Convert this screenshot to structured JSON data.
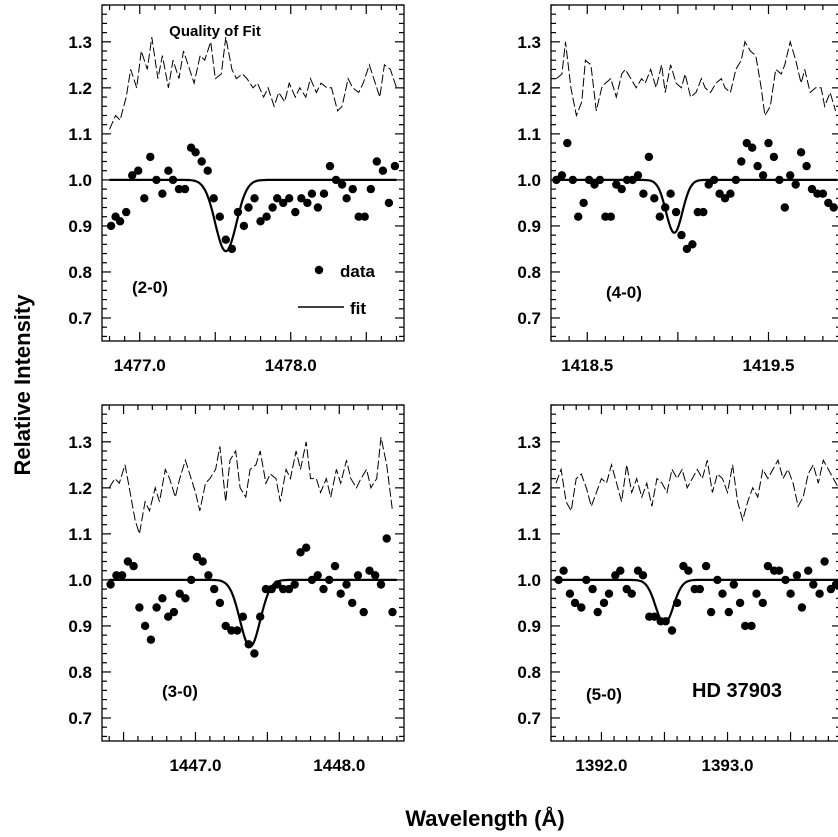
{
  "figure": {
    "xlabel": "Wavelength (Å)",
    "ylabel": "Relative Intensity"
  },
  "chart_data": [
    {
      "type": "scatter",
      "panel_label": "(2-0)",
      "title": "Quality of Fit",
      "annotation": "",
      "legend": [
        {
          "kind": "marker",
          "label": "data"
        },
        {
          "kind": "line",
          "label": "fit"
        }
      ],
      "xlim": [
        1476.75,
        1478.75
      ],
      "ylim": [
        0.65,
        1.38
      ],
      "x_ticks": [
        1477.0,
        1478.0
      ],
      "x_tick_labels": [
        "1477.0",
        "1478.0"
      ],
      "y_ticks": [
        0.7,
        0.8,
        0.9,
        1.0,
        1.1,
        1.2,
        1.3
      ],
      "y_tick_labels": [
        "0.7",
        "0.8",
        "0.9",
        "1.0",
        "1.1",
        "1.2",
        "1.3"
      ],
      "fit": {
        "x_start": 1476.8,
        "x_end": 1478.7,
        "continuum": 1.0,
        "center": 1477.57,
        "depth": 0.155,
        "sigma": 0.07
      },
      "data": {
        "x": [
          1476.81,
          1476.84,
          1476.87,
          1476.91,
          1476.95,
          1476.99,
          1477.03,
          1477.07,
          1477.11,
          1477.15,
          1477.19,
          1477.22,
          1477.26,
          1477.3,
          1477.34,
          1477.37,
          1477.41,
          1477.45,
          1477.49,
          1477.53,
          1477.57,
          1477.61,
          1477.65,
          1477.69,
          1477.72,
          1477.76,
          1477.8,
          1477.84,
          1477.88,
          1477.91,
          1477.95,
          1477.99,
          1478.03,
          1478.07,
          1478.11,
          1478.14,
          1478.18,
          1478.22,
          1478.26,
          1478.3,
          1478.34,
          1478.37,
          1478.41,
          1478.45,
          1478.49,
          1478.53,
          1478.57,
          1478.61,
          1478.65,
          1478.69
        ],
        "y": [
          0.9,
          0.92,
          0.91,
          0.93,
          1.01,
          1.02,
          0.96,
          1.05,
          1.0,
          0.97,
          1.02,
          1.0,
          0.98,
          0.98,
          1.07,
          1.06,
          1.04,
          1.02,
          0.96,
          0.92,
          0.87,
          0.85,
          0.93,
          0.9,
          0.94,
          0.96,
          0.91,
          0.92,
          0.94,
          0.96,
          0.95,
          0.96,
          0.93,
          0.96,
          0.95,
          0.97,
          0.94,
          0.97,
          1.03,
          1.0,
          0.99,
          0.96,
          0.98,
          0.92,
          0.92,
          0.98,
          1.04,
          1.02,
          0.95,
          1.03
        ]
      },
      "quality": {
        "x": [
          1476.8,
          1476.84,
          1476.87,
          1476.91,
          1476.94,
          1476.98,
          1477.01,
          1477.05,
          1477.08,
          1477.12,
          1477.15,
          1477.19,
          1477.22,
          1477.26,
          1477.29,
          1477.33,
          1477.36,
          1477.4,
          1477.43,
          1477.47,
          1477.5,
          1477.54,
          1477.57,
          1477.61,
          1477.64,
          1477.68,
          1477.71,
          1477.75,
          1477.78,
          1477.82,
          1477.85,
          1477.89,
          1477.92,
          1477.96,
          1477.99,
          1478.03,
          1478.06,
          1478.1,
          1478.13,
          1478.17,
          1478.2,
          1478.24,
          1478.27,
          1478.31,
          1478.34,
          1478.38,
          1478.41,
          1478.45,
          1478.48,
          1478.52,
          1478.55,
          1478.59,
          1478.62,
          1478.66,
          1478.7
        ],
        "y": [
          1.11,
          1.14,
          1.13,
          1.18,
          1.24,
          1.2,
          1.28,
          1.24,
          1.31,
          1.22,
          1.27,
          1.2,
          1.26,
          1.22,
          1.28,
          1.24,
          1.21,
          1.27,
          1.26,
          1.3,
          1.22,
          1.23,
          1.31,
          1.24,
          1.22,
          1.23,
          1.22,
          1.2,
          1.21,
          1.18,
          1.2,
          1.16,
          1.19,
          1.17,
          1.21,
          1.18,
          1.2,
          1.18,
          1.22,
          1.19,
          1.21,
          1.2,
          1.2,
          1.15,
          1.16,
          1.22,
          1.2,
          1.19,
          1.21,
          1.25,
          1.22,
          1.18,
          1.25,
          1.24,
          1.2
        ]
      }
    },
    {
      "type": "scatter",
      "panel_label": "(4-0)",
      "title": "",
      "annotation": "",
      "legend": [],
      "xlim": [
        1418.3,
        1419.9
      ],
      "ylim": [
        0.65,
        1.38
      ],
      "x_ticks": [
        1418.5,
        1419.5
      ],
      "x_tick_labels": [
        "1418.5",
        "1419.5"
      ],
      "y_ticks": [
        0.7,
        0.8,
        0.9,
        1.0,
        1.1,
        1.2,
        1.3
      ],
      "y_tick_labels": [
        "0.7",
        "0.8",
        "0.9",
        "1.0",
        "1.1",
        "1.2",
        "1.3"
      ],
      "fit": {
        "x_start": 1418.32,
        "x_end": 1419.88,
        "continuum": 1.0,
        "center": 1418.98,
        "depth": 0.115,
        "sigma": 0.045
      },
      "data": {
        "x": [
          1418.33,
          1418.36,
          1418.39,
          1418.42,
          1418.45,
          1418.48,
          1418.51,
          1418.54,
          1418.57,
          1418.6,
          1418.63,
          1418.66,
          1418.69,
          1418.72,
          1418.75,
          1418.78,
          1418.81,
          1418.84,
          1418.87,
          1418.9,
          1418.93,
          1418.96,
          1418.99,
          1419.02,
          1419.05,
          1419.08,
          1419.11,
          1419.14,
          1419.17,
          1419.2,
          1419.23,
          1419.26,
          1419.29,
          1419.32,
          1419.35,
          1419.38,
          1419.41,
          1419.44,
          1419.47,
          1419.5,
          1419.53,
          1419.56,
          1419.59,
          1419.62,
          1419.65,
          1419.68,
          1419.71,
          1419.74,
          1419.77,
          1419.8,
          1419.83,
          1419.86
        ],
        "y": [
          1.0,
          1.01,
          1.08,
          1.0,
          0.92,
          0.95,
          1.0,
          0.99,
          1.0,
          0.92,
          0.92,
          0.99,
          0.98,
          1.0,
          1.0,
          1.01,
          0.97,
          1.05,
          0.96,
          0.92,
          0.94,
          0.97,
          0.93,
          0.88,
          0.85,
          0.86,
          0.93,
          0.93,
          0.99,
          1.0,
          0.97,
          0.96,
          0.97,
          1.0,
          1.04,
          1.08,
          1.07,
          1.03,
          1.01,
          1.08,
          1.05,
          1.0,
          0.94,
          1.01,
          0.99,
          1.06,
          1.03,
          0.98,
          0.97,
          0.97,
          0.95,
          0.94
        ]
      },
      "quality": {
        "x": [
          1418.33,
          1418.36,
          1418.38,
          1418.41,
          1418.44,
          1418.47,
          1418.49,
          1418.52,
          1418.55,
          1418.58,
          1418.6,
          1418.63,
          1418.66,
          1418.69,
          1418.71,
          1418.74,
          1418.77,
          1418.8,
          1418.82,
          1418.85,
          1418.88,
          1418.91,
          1418.93,
          1418.96,
          1418.99,
          1419.02,
          1419.04,
          1419.07,
          1419.1,
          1419.13,
          1419.15,
          1419.18,
          1419.21,
          1419.24,
          1419.26,
          1419.29,
          1419.32,
          1419.35,
          1419.37,
          1419.4,
          1419.43,
          1419.46,
          1419.48,
          1419.51,
          1419.54,
          1419.57,
          1419.59,
          1419.62,
          1419.65,
          1419.68,
          1419.7,
          1419.73,
          1419.76,
          1419.79,
          1419.81,
          1419.84,
          1419.87
        ],
        "y": [
          1.22,
          1.23,
          1.3,
          1.2,
          1.14,
          1.17,
          1.26,
          1.25,
          1.15,
          1.2,
          1.21,
          1.22,
          1.18,
          1.23,
          1.24,
          1.22,
          1.2,
          1.22,
          1.21,
          1.24,
          1.2,
          1.25,
          1.19,
          1.25,
          1.21,
          1.2,
          1.23,
          1.18,
          1.19,
          1.22,
          1.2,
          1.19,
          1.21,
          1.22,
          1.2,
          1.19,
          1.24,
          1.26,
          1.3,
          1.28,
          1.27,
          1.2,
          1.14,
          1.16,
          1.24,
          1.23,
          1.25,
          1.3,
          1.26,
          1.21,
          1.24,
          1.19,
          1.2,
          1.2,
          1.16,
          1.19,
          1.15
        ]
      }
    },
    {
      "type": "scatter",
      "panel_label": "(3-0)",
      "title": "",
      "annotation": "",
      "legend": [],
      "xlim": [
        1446.35,
        1448.45
      ],
      "ylim": [
        0.65,
        1.38
      ],
      "x_ticks": [
        1447.0,
        1448.0
      ],
      "x_tick_labels": [
        "1447.0",
        "1448.0"
      ],
      "y_ticks": [
        0.7,
        0.8,
        0.9,
        1.0,
        1.1,
        1.2,
        1.3
      ],
      "y_tick_labels": [
        "0.7",
        "0.8",
        "0.9",
        "1.0",
        "1.1",
        "1.2",
        "1.3"
      ],
      "fit": {
        "x_start": 1446.4,
        "x_end": 1448.4,
        "continuum": 1.0,
        "center": 1447.38,
        "depth": 0.145,
        "sigma": 0.07
      },
      "data": {
        "x": [
          1446.41,
          1446.45,
          1446.49,
          1446.53,
          1446.57,
          1446.61,
          1446.65,
          1446.69,
          1446.73,
          1446.77,
          1446.81,
          1446.85,
          1446.89,
          1446.93,
          1446.97,
          1447.01,
          1447.05,
          1447.09,
          1447.13,
          1447.17,
          1447.21,
          1447.25,
          1447.29,
          1447.33,
          1447.37,
          1447.41,
          1447.45,
          1447.49,
          1447.53,
          1447.57,
          1447.61,
          1447.65,
          1447.69,
          1447.73,
          1447.77,
          1447.81,
          1447.85,
          1447.89,
          1447.93,
          1447.97,
          1448.01,
          1448.05,
          1448.09,
          1448.13,
          1448.17,
          1448.21,
          1448.25,
          1448.29,
          1448.33,
          1448.37
        ],
        "y": [
          0.99,
          1.01,
          1.01,
          1.04,
          1.03,
          0.94,
          0.9,
          0.87,
          0.94,
          0.96,
          0.92,
          0.93,
          0.97,
          0.96,
          1.0,
          1.05,
          1.04,
          1.01,
          0.98,
          0.95,
          0.9,
          0.89,
          0.89,
          0.92,
          0.86,
          0.84,
          0.92,
          0.98,
          0.98,
          0.99,
          0.98,
          0.98,
          0.99,
          1.06,
          1.07,
          1.0,
          1.01,
          0.98,
          1.0,
          1.03,
          0.97,
          0.99,
          0.95,
          1.01,
          0.93,
          1.02,
          1.01,
          0.99,
          1.09,
          0.93
        ]
      },
      "quality": {
        "x": [
          1446.4,
          1446.44,
          1446.47,
          1446.51,
          1446.54,
          1446.58,
          1446.61,
          1446.65,
          1446.68,
          1446.72,
          1446.75,
          1446.79,
          1446.82,
          1446.86,
          1446.89,
          1446.93,
          1446.96,
          1447.0,
          1447.03,
          1447.07,
          1447.1,
          1447.14,
          1447.17,
          1447.21,
          1447.24,
          1447.28,
          1447.31,
          1447.35,
          1447.38,
          1447.42,
          1447.45,
          1447.49,
          1447.52,
          1447.56,
          1447.59,
          1447.63,
          1447.66,
          1447.7,
          1447.73,
          1447.77,
          1447.8,
          1447.84,
          1447.87,
          1447.91,
          1447.94,
          1447.98,
          1448.01,
          1448.05,
          1448.08,
          1448.12,
          1448.15,
          1448.19,
          1448.22,
          1448.26,
          1448.29,
          1448.33,
          1448.37
        ],
        "y": [
          1.2,
          1.22,
          1.21,
          1.25,
          1.2,
          1.13,
          1.1,
          1.17,
          1.15,
          1.2,
          1.17,
          1.24,
          1.22,
          1.18,
          1.22,
          1.26,
          1.23,
          1.19,
          1.15,
          1.21,
          1.22,
          1.24,
          1.29,
          1.17,
          1.26,
          1.28,
          1.2,
          1.18,
          1.24,
          1.25,
          1.28,
          1.21,
          1.23,
          1.22,
          1.17,
          1.24,
          1.22,
          1.28,
          1.24,
          1.3,
          1.22,
          1.22,
          1.19,
          1.22,
          1.18,
          1.24,
          1.21,
          1.26,
          1.22,
          1.2,
          1.22,
          1.24,
          1.2,
          1.22,
          1.31,
          1.25,
          1.15
        ]
      }
    },
    {
      "type": "scatter",
      "panel_label": "(5-0)",
      "title": "",
      "annotation": "HD 37903",
      "legend": [],
      "xlim": [
        1391.6,
        1393.9
      ],
      "ylim": [
        0.65,
        1.38
      ],
      "x_ticks": [
        1392.0,
        1393.0
      ],
      "x_tick_labels": [
        "1392.0",
        "1393.0"
      ],
      "y_ticks": [
        0.7,
        0.8,
        0.9,
        1.0,
        1.1,
        1.2,
        1.3
      ],
      "y_tick_labels": [
        "0.7",
        "0.8",
        "0.9",
        "1.0",
        "1.1",
        "1.2",
        "1.3"
      ],
      "fit": {
        "x_start": 1391.62,
        "x_end": 1393.88,
        "continuum": 1.0,
        "center": 1392.5,
        "depth": 0.095,
        "sigma": 0.07
      },
      "data": {
        "x": [
          1391.66,
          1391.7,
          1391.75,
          1391.79,
          1391.84,
          1391.88,
          1391.93,
          1391.97,
          1392.02,
          1392.06,
          1392.11,
          1392.15,
          1392.2,
          1392.24,
          1392.29,
          1392.33,
          1392.38,
          1392.42,
          1392.47,
          1392.51,
          1392.56,
          1392.6,
          1392.65,
          1392.69,
          1392.74,
          1392.78,
          1392.83,
          1392.87,
          1392.92,
          1392.96,
          1393.01,
          1393.05,
          1393.1,
          1393.14,
          1393.19,
          1393.23,
          1393.28,
          1393.32,
          1393.37,
          1393.41,
          1393.46,
          1393.5,
          1393.55,
          1393.59,
          1393.64,
          1393.68,
          1393.73,
          1393.77,
          1393.82,
          1393.86
        ],
        "y": [
          1.0,
          1.02,
          0.97,
          0.95,
          0.94,
          1.0,
          0.98,
          0.93,
          0.95,
          0.97,
          1.01,
          1.02,
          0.98,
          0.97,
          1.02,
          1.01,
          0.92,
          0.92,
          0.91,
          0.91,
          0.89,
          0.95,
          1.03,
          1.02,
          0.98,
          0.98,
          1.03,
          0.93,
          1.0,
          0.97,
          0.93,
          0.99,
          0.95,
          0.9,
          0.9,
          0.97,
          0.95,
          1.03,
          1.02,
          1.02,
          1.0,
          0.97,
          1.01,
          0.94,
          1.02,
          0.99,
          0.97,
          1.04,
          0.98,
          0.99
        ]
      },
      "quality": {
        "x": [
          1391.64,
          1391.68,
          1391.72,
          1391.76,
          1391.8,
          1391.84,
          1391.88,
          1391.92,
          1391.96,
          1392.0,
          1392.04,
          1392.08,
          1392.12,
          1392.16,
          1392.2,
          1392.24,
          1392.28,
          1392.32,
          1392.36,
          1392.4,
          1392.44,
          1392.48,
          1392.52,
          1392.56,
          1392.6,
          1392.64,
          1392.68,
          1392.72,
          1392.76,
          1392.8,
          1392.84,
          1392.88,
          1392.92,
          1392.96,
          1393.0,
          1393.04,
          1393.08,
          1393.12,
          1393.16,
          1393.2,
          1393.24,
          1393.28,
          1393.32,
          1393.36,
          1393.4,
          1393.44,
          1393.48,
          1393.52,
          1393.56,
          1393.6,
          1393.64,
          1393.68,
          1393.72,
          1393.76,
          1393.8,
          1393.84,
          1393.88
        ],
        "y": [
          1.21,
          1.24,
          1.17,
          1.15,
          1.22,
          1.23,
          1.2,
          1.16,
          1.19,
          1.22,
          1.21,
          1.25,
          1.21,
          1.17,
          1.25,
          1.19,
          1.22,
          1.18,
          1.21,
          1.16,
          1.22,
          1.21,
          1.19,
          1.24,
          1.22,
          1.24,
          1.2,
          1.22,
          1.24,
          1.22,
          1.26,
          1.19,
          1.23,
          1.22,
          1.19,
          1.25,
          1.17,
          1.13,
          1.17,
          1.2,
          1.18,
          1.24,
          1.22,
          1.24,
          1.26,
          1.22,
          1.24,
          1.21,
          1.16,
          1.18,
          1.23,
          1.25,
          1.21,
          1.26,
          1.24,
          1.22,
          1.2
        ]
      }
    }
  ]
}
